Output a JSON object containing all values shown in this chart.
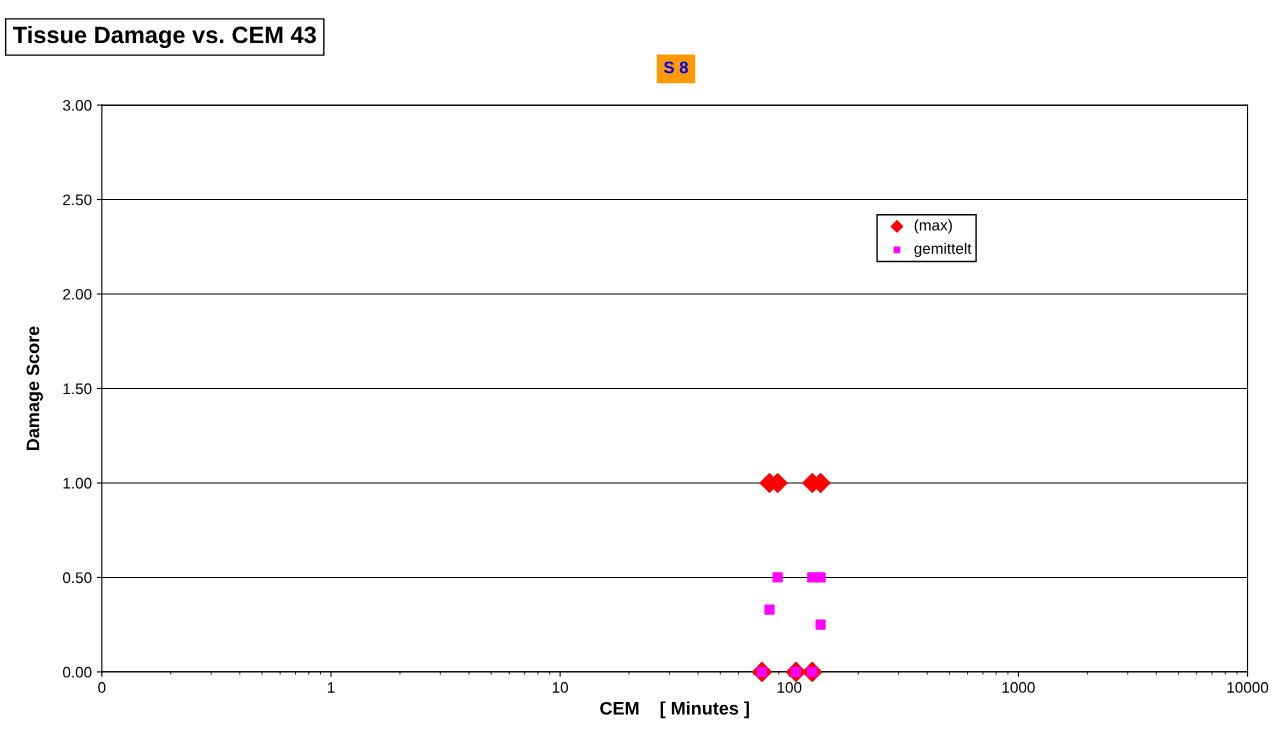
{
  "chart_data": {
    "type": "scatter",
    "title": "Tissue Damage vs. CEM 43",
    "annotations": [
      "S 8"
    ],
    "xlabel": "CEM    [ Minutes ]",
    "ylabel": "Damage Score",
    "log": "x",
    "xlim": [
      0.1,
      10000
    ],
    "xticks": [
      {
        "value": 0.1,
        "label": "0"
      },
      1,
      10,
      100,
      1000,
      10000
    ],
    "ylim": [
      0,
      3
    ],
    "yticks": [
      {
        "value": 0,
        "label": "0.00"
      },
      {
        "value": 0.5,
        "label": "0.50"
      },
      {
        "value": 1,
        "label": "1.00"
      },
      {
        "value": 1.5,
        "label": "1.50"
      },
      {
        "value": 2,
        "label": "2.00"
      },
      {
        "value": 2.5,
        "label": "2.50"
      },
      {
        "value": 3,
        "label": "3.00"
      }
    ],
    "grid": "y",
    "legend": "top right",
    "series": [
      {
        "name": "(max)",
        "color": "#ff0000",
        "marker": "diamond",
        "x": [
          82,
          89,
          126,
          137,
          76,
          107,
          126
        ],
        "values": [
          1,
          1,
          1,
          1,
          0,
          0,
          0
        ]
      },
      {
        "name": "gemittelt",
        "color": "#ff00ff",
        "marker": "square",
        "x": [
          89,
          126,
          137,
          82,
          137,
          76,
          107,
          126
        ],
        "values": [
          0.5,
          0.5,
          0.5,
          0.33,
          0.25,
          0,
          0,
          0
        ]
      }
    ]
  }
}
